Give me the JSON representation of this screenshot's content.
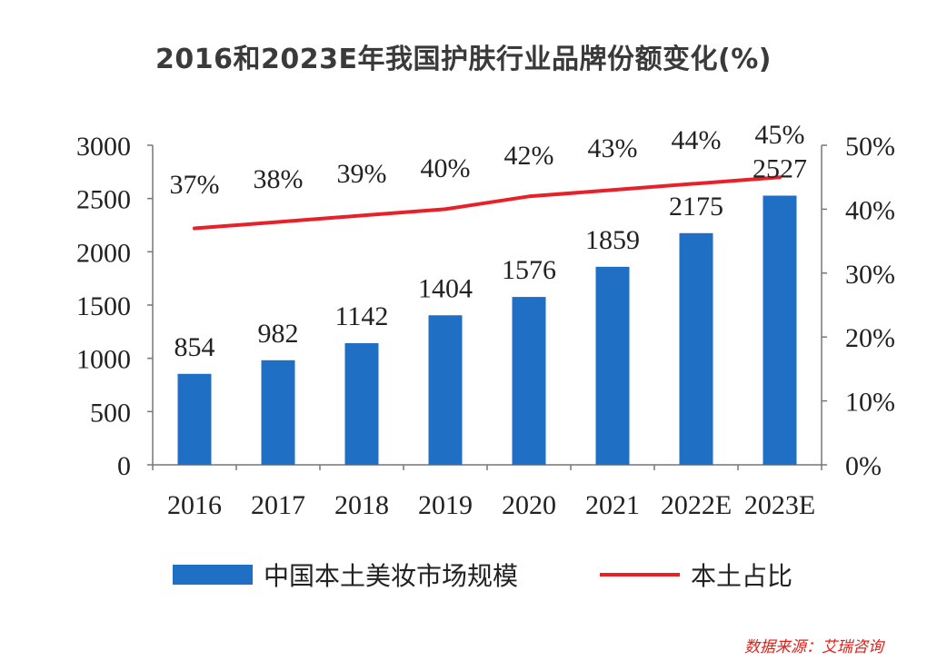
{
  "chart_data": {
    "type": "bar+line",
    "title": "2016和2023E年我国护肤行业品牌份额变化(%)",
    "categories": [
      "2016",
      "2017",
      "2018",
      "2019",
      "2020",
      "2021",
      "2022E",
      "2023E"
    ],
    "series": [
      {
        "name": "中国本土美妆市场规模",
        "type": "bar",
        "axis": "left",
        "color": "#1f6fc5",
        "values": [
          854,
          982,
          1142,
          1404,
          1576,
          1859,
          2175,
          2527
        ],
        "labels": [
          "854",
          "982",
          "1142",
          "1404",
          "1576",
          "1859",
          "2175",
          "2527"
        ]
      },
      {
        "name": "本土占比",
        "type": "line",
        "axis": "right",
        "color": "#e8202a",
        "values": [
          37,
          38,
          39,
          40,
          42,
          43,
          44,
          45
        ],
        "labels": [
          "37%",
          "38%",
          "39%",
          "40%",
          "42%",
          "43%",
          "44%",
          "45%"
        ]
      }
    ],
    "y_left": {
      "min": 0,
      "max": 3000,
      "ticks": [
        "0",
        "500",
        "1000",
        "1500",
        "2000",
        "2500",
        "3000"
      ]
    },
    "y_right": {
      "min": 0,
      "max": 50,
      "ticks": [
        "0%",
        "10%",
        "20%",
        "30%",
        "40%",
        "50%"
      ]
    },
    "grid": false,
    "legend_position": "bottom"
  },
  "source": "数据来源：艾瑞咨询"
}
